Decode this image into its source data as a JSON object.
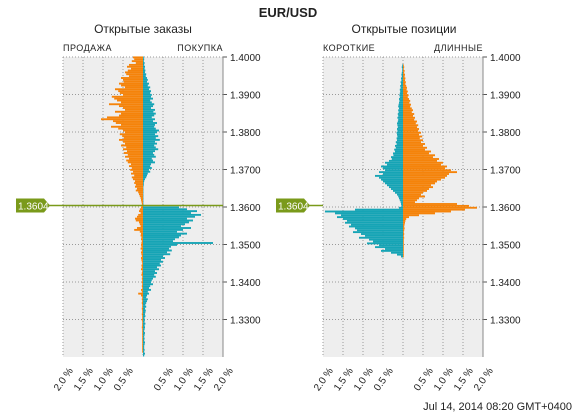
{
  "page_title": "EUR/USD",
  "timestamp": "Jul 14, 2014 08:20 GMT+0400",
  "colors": {
    "buy_long": "#F5830A",
    "sell_short": "#16A4B5",
    "price_line": "#7A9A1A",
    "grid": "#999999",
    "plot_bg": "#EEEEEE"
  },
  "chart_data": [
    {
      "type": "bar",
      "orientation": "horizontal",
      "title": "Открытые заказы",
      "left_label": "ПРОДАЖА",
      "right_label": "ПОКУПКА",
      "current_price": "1.3604",
      "current_price_value": 1.3604,
      "ylim": [
        1.32,
        1.4
      ],
      "y_ticks": [
        "1.4000",
        "1.3900",
        "1.3800",
        "1.3700",
        "1.3600",
        "1.3500",
        "1.3400",
        "1.3300"
      ],
      "y_tick_values": [
        1.4,
        1.39,
        1.38,
        1.37,
        1.36,
        1.35,
        1.34,
        1.33
      ],
      "xlim": [
        -2.0,
        2.0
      ],
      "x_ticks": [
        "2.0 %",
        "1.5 %",
        "1.0 %",
        "0.5 %",
        "",
        "0.5 %",
        "1.0 %",
        "1.5 %",
        "2.0 %"
      ],
      "x_tick_values": [
        -2.0,
        -1.5,
        -1.0,
        -0.5,
        0,
        0.5,
        1.0,
        1.5,
        2.0
      ],
      "bucket_size": 0.0005,
      "price_levels": [
        1.3999,
        1.3994,
        1.3989,
        1.3984,
        1.3979,
        1.3974,
        1.3969,
        1.3964,
        1.3959,
        1.3954,
        1.3949,
        1.3944,
        1.3939,
        1.3934,
        1.3929,
        1.3924,
        1.3919,
        1.3914,
        1.3909,
        1.3904,
        1.3899,
        1.3894,
        1.3889,
        1.3884,
        1.3879,
        1.3874,
        1.3869,
        1.3864,
        1.3859,
        1.3854,
        1.3849,
        1.3844,
        1.3839,
        1.3834,
        1.3829,
        1.3824,
        1.3819,
        1.3814,
        1.3809,
        1.3804,
        1.3799,
        1.3794,
        1.3789,
        1.3784,
        1.3779,
        1.3774,
        1.3769,
        1.3764,
        1.3759,
        1.3754,
        1.3749,
        1.3744,
        1.3739,
        1.3734,
        1.3729,
        1.3724,
        1.3719,
        1.3714,
        1.3709,
        1.3704,
        1.3699,
        1.3694,
        1.3689,
        1.3684,
        1.3679,
        1.3674,
        1.3669,
        1.3664,
        1.3659,
        1.3654,
        1.3649,
        1.3644,
        1.3639,
        1.3634,
        1.3629,
        1.3624,
        1.3619,
        1.3614,
        1.3609,
        1.3604,
        1.3599,
        1.3594,
        1.3589,
        1.3584,
        1.3579,
        1.3574,
        1.3569,
        1.3564,
        1.3559,
        1.3554,
        1.3549,
        1.3544,
        1.3539,
        1.3534,
        1.3529,
        1.3524,
        1.3519,
        1.3514,
        1.3509,
        1.3504,
        1.3499,
        1.3494,
        1.3489,
        1.3484,
        1.3479,
        1.3474,
        1.3469,
        1.3464,
        1.3459,
        1.3454,
        1.3449,
        1.3444,
        1.3439,
        1.3434,
        1.3429,
        1.3424,
        1.3419,
        1.3414,
        1.3409,
        1.3404,
        1.3399,
        1.3394,
        1.3389,
        1.3384,
        1.3379,
        1.3374,
        1.3369,
        1.3364,
        1.3359,
        1.3354,
        1.3349,
        1.3344,
        1.3339,
        1.3334,
        1.3329,
        1.3324,
        1.3319,
        1.3314,
        1.3309,
        1.3304,
        1.3299,
        1.3294,
        1.3289,
        1.3284,
        1.3279,
        1.3274,
        1.3269,
        1.3264,
        1.3259,
        1.3254,
        1.3249,
        1.3244,
        1.3239,
        1.3234,
        1.3229,
        1.3224,
        1.3219,
        1.3214,
        1.3209,
        1.3204
      ],
      "series": [
        {
          "name": "ПРОДАЖА",
          "color": "#F5830A",
          "side": "left",
          "values": [
            0.25,
            0.22,
            0.28,
            0.18,
            0.35,
            0.4,
            0.3,
            0.38,
            0.45,
            0.42,
            0.35,
            0.55,
            0.5,
            0.48,
            0.6,
            0.55,
            0.45,
            0.7,
            0.62,
            0.58,
            0.5,
            0.78,
            0.72,
            0.65,
            0.55,
            0.85,
            0.6,
            0.5,
            0.45,
            0.7,
            0.55,
            0.6,
            0.9,
            1.05,
            0.75,
            0.68,
            0.55,
            0.8,
            0.62,
            0.5,
            0.45,
            0.58,
            0.52,
            0.48,
            0.6,
            0.5,
            0.45,
            0.55,
            0.42,
            0.5,
            0.4,
            0.48,
            0.38,
            0.45,
            0.35,
            0.42,
            0.38,
            0.3,
            0.35,
            0.28,
            0.32,
            0.25,
            0.3,
            0.22,
            0.28,
            0.25,
            0.2,
            0.22,
            0.18,
            0.2,
            0.15,
            0.18,
            0.12,
            0.1,
            0.08,
            0.06,
            0.05,
            0.04,
            0.03,
            0.02,
            0.05,
            0.08,
            0.1,
            0.06,
            0.12,
            0.15,
            0.2,
            0.18,
            0.1,
            0.08,
            0.06,
            0.15,
            0.22,
            0.08,
            0.05,
            0.06,
            0.04,
            0.05,
            0.03,
            0.04,
            0.05,
            0.04,
            0.06,
            0.03,
            0.05,
            0.04,
            0.03,
            0.05,
            0.04,
            0.03,
            0.02,
            0.04,
            0.03,
            0.05,
            0.02,
            0.03,
            0.04,
            0.02,
            0.03,
            0.02,
            0.03,
            0.02,
            0.03,
            0.02,
            0.05,
            0.03,
            0.12,
            0.05,
            0.02,
            0.03,
            0.02,
            0.03,
            0.02,
            0.02,
            0.03,
            0.02,
            0.02,
            0.03,
            0.02,
            0.02,
            0.03,
            0.02,
            0.02,
            0.02,
            0.03,
            0.02,
            0.02,
            0.02,
            0.02,
            0.02,
            0.02,
            0.02,
            0.02,
            0.02,
            0.02,
            0.02,
            0.02,
            0.02
          ]
        },
        {
          "name": "ПОКУПКА",
          "color": "#16A4B5",
          "side": "right",
          "values": [
            0.02,
            0.03,
            0.02,
            0.04,
            0.03,
            0.05,
            0.04,
            0.06,
            0.05,
            0.08,
            0.07,
            0.1,
            0.12,
            0.1,
            0.15,
            0.12,
            0.18,
            0.15,
            0.2,
            0.18,
            0.22,
            0.2,
            0.25,
            0.18,
            0.22,
            0.28,
            0.25,
            0.2,
            0.3,
            0.26,
            0.32,
            0.28,
            0.22,
            0.3,
            0.25,
            0.35,
            0.3,
            0.28,
            0.32,
            0.4,
            0.35,
            0.3,
            0.38,
            0.32,
            0.42,
            0.3,
            0.35,
            0.28,
            0.32,
            0.38,
            0.3,
            0.25,
            0.28,
            0.32,
            0.22,
            0.25,
            0.3,
            0.2,
            0.18,
            0.22,
            0.15,
            0.18,
            0.12,
            0.1,
            0.08,
            0.05,
            0.03,
            0.02,
            0.02,
            0.01,
            0.01,
            0.01,
            0.01,
            0.01,
            0.01,
            0.01,
            0.01,
            0.01,
            0.01,
            0.01,
            0.9,
            1.1,
            1.35,
            1.2,
            1.45,
            1.3,
            1.1,
            1.25,
            1.15,
            1.05,
            0.95,
            1.2,
            1.0,
            0.85,
            1.1,
            0.95,
            0.9,
            0.8,
            0.75,
            1.75,
            0.85,
            0.7,
            0.65,
            0.72,
            0.6,
            0.68,
            0.5,
            0.55,
            0.45,
            0.5,
            0.42,
            0.45,
            0.35,
            0.4,
            0.3,
            0.35,
            0.28,
            0.32,
            0.25,
            0.22,
            0.2,
            0.25,
            0.18,
            0.15,
            0.2,
            0.12,
            0.15,
            0.1,
            0.08,
            0.12,
            0.1,
            0.08,
            0.06,
            0.08,
            0.05,
            0.07,
            0.06,
            0.05,
            0.06,
            0.04,
            0.05,
            0.04,
            0.06,
            0.04,
            0.05,
            0.04,
            0.03,
            0.05,
            0.04,
            0.03,
            0.04,
            0.03,
            0.05,
            0.04,
            0.03,
            0.03,
            0.04,
            0.03,
            0.05,
            0.03
          ]
        }
      ]
    },
    {
      "type": "bar",
      "orientation": "horizontal",
      "title": "Открытые позиции",
      "left_label": "КОРОТКИЕ",
      "right_label": "ДЛИННЫЕ",
      "current_price": "1.3604",
      "current_price_value": 1.3604,
      "ylim": [
        1.32,
        1.4
      ],
      "y_ticks": [
        "1.4000",
        "1.3900",
        "1.3800",
        "1.3700",
        "1.3600",
        "1.3500",
        "1.3400",
        "1.3300"
      ],
      "y_tick_values": [
        1.4,
        1.39,
        1.38,
        1.37,
        1.36,
        1.35,
        1.34,
        1.33
      ],
      "xlim": [
        -2.0,
        2.0
      ],
      "x_ticks": [
        "2.0 %",
        "1.5 %",
        "1.0 %",
        "0.5 %",
        "",
        "0.5 %",
        "1.0 %",
        "1.5 %",
        "2.0 %"
      ],
      "x_tick_values": [
        -2.0,
        -1.5,
        -1.0,
        -0.5,
        0,
        0.5,
        1.0,
        1.5,
        2.0
      ],
      "bucket_size": 0.0005,
      "price_levels": [
        1.3978,
        1.3973,
        1.3968,
        1.3963,
        1.3958,
        1.3953,
        1.3948,
        1.3943,
        1.3938,
        1.3933,
        1.3928,
        1.3923,
        1.3918,
        1.3913,
        1.3908,
        1.3903,
        1.3898,
        1.3893,
        1.3888,
        1.3883,
        1.3878,
        1.3873,
        1.3868,
        1.3863,
        1.3858,
        1.3853,
        1.3848,
        1.3843,
        1.3838,
        1.3833,
        1.3828,
        1.3823,
        1.3818,
        1.3813,
        1.3808,
        1.3803,
        1.3798,
        1.3793,
        1.3788,
        1.3783,
        1.3778,
        1.3773,
        1.3768,
        1.3763,
        1.3758,
        1.3753,
        1.3748,
        1.3743,
        1.3738,
        1.3733,
        1.3728,
        1.3723,
        1.3718,
        1.3713,
        1.3708,
        1.3703,
        1.3698,
        1.3693,
        1.3688,
        1.3683,
        1.3678,
        1.3673,
        1.3668,
        1.3663,
        1.3658,
        1.3653,
        1.3648,
        1.3643,
        1.3638,
        1.3633,
        1.3628,
        1.3623,
        1.3618,
        1.3613,
        1.3608,
        1.3603,
        1.3598,
        1.3593,
        1.3588,
        1.3583,
        1.3578,
        1.3573,
        1.3568,
        1.3563,
        1.3558,
        1.3553,
        1.3548,
        1.3543,
        1.3538,
        1.3533,
        1.3528,
        1.3523,
        1.3518,
        1.3513,
        1.3508,
        1.3503,
        1.3498,
        1.3493,
        1.3488,
        1.3483,
        1.3478,
        1.3473,
        1.3468
      ],
      "series": [
        {
          "name": "КОРОТКИЕ",
          "color": "#16A4B5",
          "side": "left",
          "values": [
            0.02,
            0.03,
            0.02,
            0.02,
            0.03,
            0.04,
            0.03,
            0.05,
            0.04,
            0.06,
            0.05,
            0.07,
            0.06,
            0.08,
            0.07,
            0.08,
            0.09,
            0.08,
            0.1,
            0.09,
            0.1,
            0.11,
            0.12,
            0.1,
            0.12,
            0.11,
            0.13,
            0.12,
            0.14,
            0.12,
            0.13,
            0.15,
            0.14,
            0.13,
            0.15,
            0.14,
            0.16,
            0.15,
            0.14,
            0.16,
            0.15,
            0.18,
            0.16,
            0.2,
            0.18,
            0.22,
            0.2,
            0.25,
            0.24,
            0.3,
            0.28,
            0.35,
            0.45,
            0.4,
            0.55,
            0.5,
            0.45,
            0.6,
            0.5,
            0.7,
            0.6,
            0.55,
            0.5,
            0.45,
            0.4,
            0.35,
            0.3,
            0.25,
            0.2,
            0.15,
            0.12,
            0.1,
            0.08,
            0.06,
            0.05,
            0.04,
            0.1,
            1.2,
            1.95,
            1.7,
            1.55,
            1.65,
            1.5,
            1.4,
            1.45,
            1.3,
            1.35,
            1.2,
            1.15,
            1.25,
            1.05,
            0.95,
            1.1,
            0.85,
            0.75,
            0.9,
            0.6,
            0.7,
            0.45,
            0.55,
            0.3,
            0.15,
            0.05
          ]
        },
        {
          "name": "ДЛИННЫЕ",
          "color": "#F5830A",
          "side": "right",
          "values": [
            0.02,
            0.03,
            0.02,
            0.04,
            0.03,
            0.05,
            0.04,
            0.06,
            0.05,
            0.07,
            0.06,
            0.08,
            0.1,
            0.09,
            0.12,
            0.1,
            0.14,
            0.12,
            0.15,
            0.18,
            0.16,
            0.2,
            0.18,
            0.22,
            0.25,
            0.22,
            0.28,
            0.25,
            0.3,
            0.28,
            0.35,
            0.32,
            0.38,
            0.35,
            0.4,
            0.38,
            0.45,
            0.4,
            0.48,
            0.42,
            0.5,
            0.45,
            0.55,
            0.5,
            0.6,
            0.55,
            0.7,
            0.65,
            0.8,
            0.75,
            0.9,
            0.85,
            1.0,
            0.95,
            1.1,
            1.05,
            1.2,
            1.35,
            1.15,
            1.1,
            1.05,
            0.95,
            0.85,
            0.8,
            0.7,
            0.75,
            0.65,
            0.6,
            0.5,
            0.45,
            0.55,
            0.4,
            0.35,
            0.3,
            1.35,
            1.65,
            1.85,
            1.55,
            1.2,
            0.8,
            0.4,
            0.15,
            0.08,
            0.06,
            0.05,
            0.04,
            0.03,
            0.04,
            0.03,
            0.02,
            0.03,
            0.02,
            0.03,
            0.02,
            0.02,
            0.02,
            0.02,
            0.02,
            0.02,
            0.02,
            0.02,
            0.02,
            0.02
          ]
        }
      ]
    }
  ]
}
